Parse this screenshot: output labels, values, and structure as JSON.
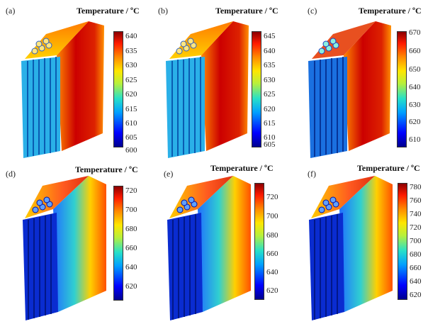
{
  "panels": [
    {
      "label": "(a)",
      "title": "Temperature / ºC",
      "ticks": [
        "640",
        "635",
        "630",
        "625",
        "620",
        "615",
        "610",
        "605",
        "600"
      ]
    },
    {
      "label": "(b)",
      "title": "Temperature / ºC",
      "ticks": [
        "645",
        "640",
        "635",
        "630",
        "625",
        "620",
        "615",
        "610",
        "605"
      ]
    },
    {
      "label": "(c)",
      "title": "Temperature / ºC",
      "ticks": [
        "670",
        "660",
        "650",
        "640",
        "630",
        "620",
        "610"
      ]
    },
    {
      "label": "(d)",
      "title": "Temperature / ºC",
      "ticks": [
        "720",
        "700",
        "680",
        "660",
        "640",
        "620"
      ]
    },
    {
      "label": "(e)",
      "title": "Temperature / ºC",
      "ticks": [
        "720",
        "700",
        "680",
        "660",
        "640",
        "620"
      ]
    },
    {
      "label": "(f)",
      "title": "Temperature / ºC",
      "ticks": [
        "780",
        "760",
        "740",
        "720",
        "700",
        "680",
        "660",
        "640",
        "620"
      ]
    }
  ]
}
